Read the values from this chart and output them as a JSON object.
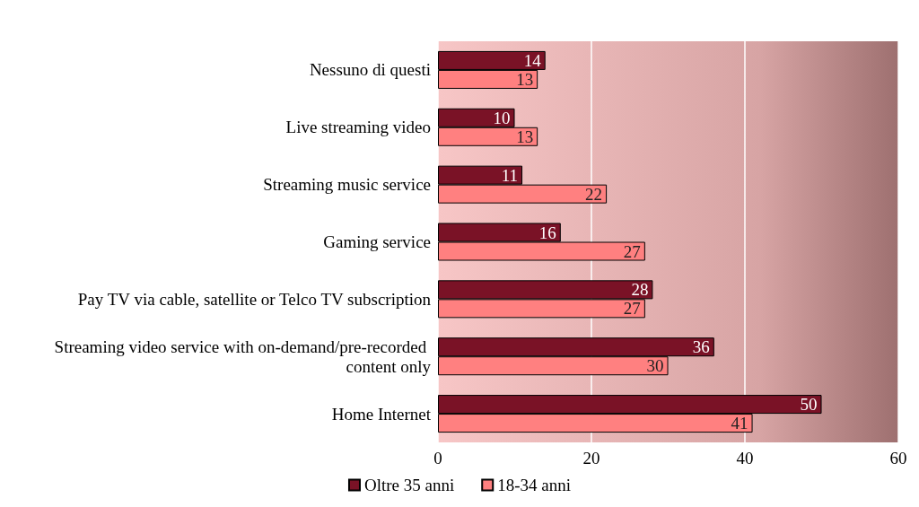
{
  "chart_data": {
    "type": "bar",
    "orientation": "horizontal",
    "categories": [
      "Nessuno di questi",
      "Live streaming video",
      "Streaming music service",
      "Gaming service",
      "Pay TV via cable, satellite or Telco TV subscription",
      "Streaming video service with on-demand/pre-recorded content only",
      "Home Internet"
    ],
    "series": [
      {
        "name": "Oltre 35 anni",
        "color": "#7a1226",
        "values": [
          14,
          10,
          11,
          16,
          28,
          36,
          50
        ]
      },
      {
        "name": "18-34 anni",
        "color": "#ff8080",
        "values": [
          13,
          13,
          22,
          27,
          27,
          30,
          41
        ]
      }
    ],
    "xlim": [
      0,
      60
    ],
    "xticks": [
      0,
      20,
      40,
      60
    ],
    "grid": "x",
    "legend": "bottom",
    "data_labels": true
  }
}
